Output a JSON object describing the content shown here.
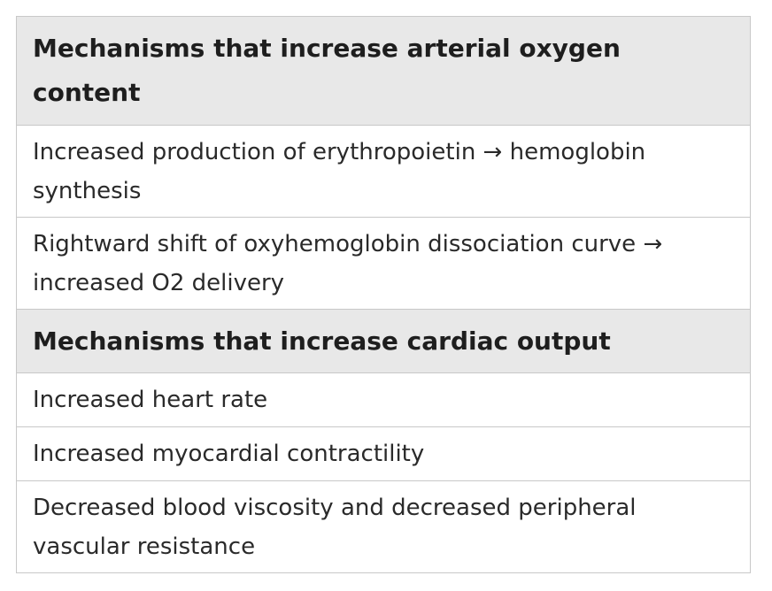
{
  "sections": [
    {
      "heading": "Mechanisms that increase arterial oxygen content",
      "rows": [
        "Increased production of erythropoietin → hemoglobin synthesis",
        "Rightward shift of oxyhemoglobin dissociation curve → increased O2 delivery"
      ]
    },
    {
      "heading": "Mechanisms that increase cardiac output",
      "rows": [
        "Increased heart rate",
        "Increased myocardial contractility",
        "Decreased blood viscosity and decreased peripheral vascular resistance"
      ]
    }
  ]
}
